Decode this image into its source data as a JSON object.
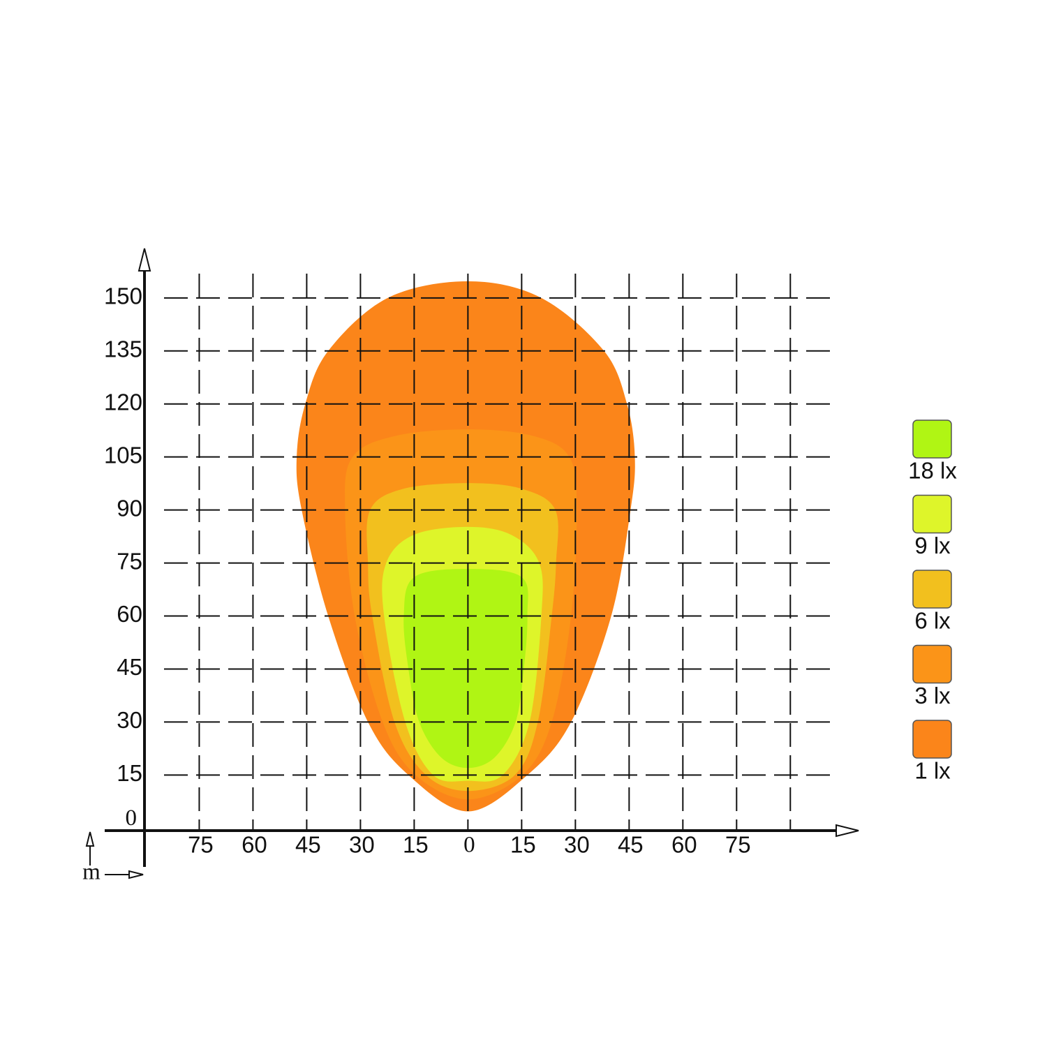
{
  "chart_data": {
    "type": "isolux",
    "unit": "m",
    "xlim": [
      -101,
      103
    ],
    "ylim": [
      -11,
      163
    ],
    "xticks": [
      {
        "value": -75,
        "label": "75"
      },
      {
        "value": -60,
        "label": "60"
      },
      {
        "value": -45,
        "label": "45"
      },
      {
        "value": -30,
        "label": "30"
      },
      {
        "value": -15,
        "label": "15"
      },
      0,
      15,
      30,
      45,
      60,
      75
    ],
    "yticks": [
      0,
      15,
      30,
      45,
      60,
      75,
      90,
      105,
      120,
      135,
      150
    ],
    "xgrid": [
      -75,
      -60,
      -45,
      -30,
      -15,
      0,
      15,
      30,
      45,
      60,
      75,
      90
    ],
    "ygrid": [
      15,
      30,
      45,
      60,
      75,
      90,
      105,
      120,
      135,
      150
    ],
    "grid": true,
    "legend": "right",
    "series": [
      {
        "name": "18 lx",
        "color": "#b0f514",
        "x": [
          0,
          7.5,
          13.3,
          15.6,
          16.6,
          15,
          0,
          -15,
          -17.9,
          -16.6,
          -13.6,
          -7.5
        ],
        "y": [
          17,
          20,
          30,
          45,
          60,
          71,
          73.3,
          71,
          60,
          45,
          30,
          20
        ]
      },
      {
        "name": "9 lx",
        "color": "#def52a",
        "x": [
          0,
          9.7,
          17.2,
          20.5,
          19.9,
          12,
          0,
          -15,
          -22.8,
          -23.4,
          -17.5,
          -9.7
        ],
        "y": [
          13.4,
          15,
          30,
          60,
          75,
          83,
          85.2,
          83,
          75,
          60,
          30,
          15
        ]
      },
      {
        "name": "6 lx",
        "color": "#f2c01e",
        "x": [
          0,
          13.1,
          19.5,
          23.4,
          24.6,
          24.4,
          15,
          0,
          -18,
          -27.3,
          -27.9,
          -26.7,
          -20.5,
          -11.7
        ],
        "y": [
          10.5,
          15,
          30,
          60,
          75,
          90,
          96,
          97.6,
          96,
          90,
          75,
          60,
          30,
          15
        ]
      },
      {
        "name": "3 lx",
        "color": "#fb9418",
        "x": [
          0,
          15.2,
          23.4,
          28.8,
          30.4,
          28.3,
          18,
          0,
          -20,
          -32.2,
          -34.3,
          -31.6,
          -23.8,
          -14.6
        ],
        "y": [
          8.1,
          15,
          30,
          60,
          90,
          105,
          111,
          112.8,
          111,
          105,
          90,
          60,
          30,
          15
        ]
      },
      {
        "name": "1 lx",
        "color": "#fb851a",
        "x": [
          0,
          16.6,
          28.8,
          40,
          45.4,
          46.6,
          44.4,
          38,
          20.5,
          0,
          -22.4,
          -39,
          -45.4,
          -47.8,
          -46.4,
          -39,
          -27.9,
          -16.6
        ],
        "y": [
          4.7,
          15,
          30,
          60,
          90,
          105,
          120,
          135,
          150,
          154.7,
          150,
          135,
          120,
          105,
          90,
          60,
          30,
          15
        ]
      }
    ]
  }
}
